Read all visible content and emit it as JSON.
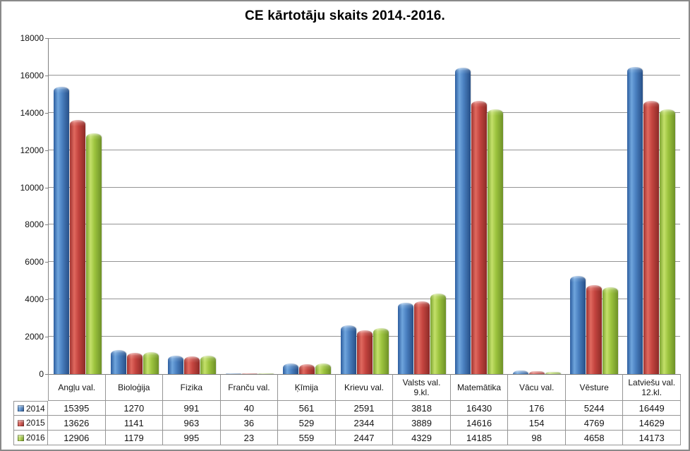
{
  "title": "CE kārtotāju skaits 2014.-2016.",
  "chart_data": {
    "type": "bar",
    "title": "CE kārtotāju skaits 2014.-2016.",
    "categories": [
      "Angļu val.",
      "Bioloģija",
      "Fizika",
      "Franču val.",
      "Ķīmija",
      "Krievu val.",
      "Valsts val. 9.kl.",
      "Matemātika",
      "Vācu val.",
      "Vēsture",
      "Latviešu val. 12.kl."
    ],
    "series": [
      {
        "name": "2014",
        "color": "#3f76b8",
        "values": [
          15395,
          1270,
          991,
          40,
          561,
          2591,
          3818,
          16430,
          176,
          5244,
          16449
        ]
      },
      {
        "name": "2015",
        "color": "#c4443f",
        "values": [
          13626,
          1141,
          963,
          36,
          529,
          2344,
          3889,
          14616,
          154,
          4769,
          14629
        ]
      },
      {
        "name": "2016",
        "color": "#9cc33e",
        "values": [
          12906,
          1179,
          995,
          23,
          559,
          2447,
          4329,
          14185,
          98,
          4658,
          14173
        ]
      }
    ],
    "xlabel": "",
    "ylabel": "",
    "ylim": [
      0,
      18000
    ],
    "yticks": [
      0,
      2000,
      4000,
      6000,
      8000,
      10000,
      12000,
      14000,
      16000,
      18000
    ],
    "grid": true,
    "legend_position": "table-left-column"
  },
  "style_colors": {
    "gridline": "#949494",
    "axis": "#7f7f7f",
    "table_border": "#959595"
  }
}
